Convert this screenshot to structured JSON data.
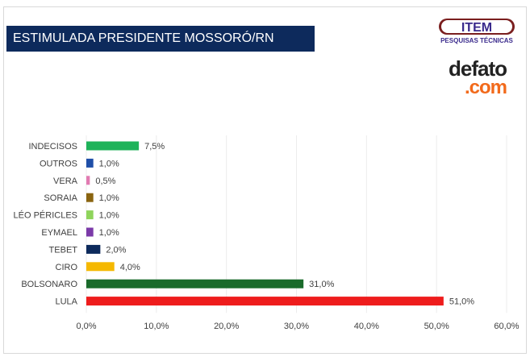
{
  "header": {
    "title": "ESTIMULADA PRESIDENTE MOSSORÓ/RN"
  },
  "logos": {
    "item": {
      "text": "ITEM",
      "subtext": "PESQUISAS TÉCNICAS"
    },
    "defato": {
      "text": "defato",
      "subtext": ".com"
    }
  },
  "chart_data": {
    "type": "bar",
    "orientation": "horizontal",
    "categories": [
      "INDECISOS",
      "OUTROS",
      "VERA",
      "SORAIA",
      "LÉO PÉRICLES",
      "EYMAEL",
      "TEBET",
      "CIRO",
      "BOLSONARO",
      "LULA"
    ],
    "values": [
      7.5,
      1.0,
      0.5,
      1.0,
      1.0,
      1.0,
      2.0,
      4.0,
      31.0,
      51.0
    ],
    "value_labels": [
      "7,5%",
      "1,0%",
      "0,5%",
      "1,0%",
      "1,0%",
      "1,0%",
      "2,0%",
      "4,0%",
      "31,0%",
      "51,0%"
    ],
    "colors": [
      "#1fb35a",
      "#1f4fa8",
      "#e27bb2",
      "#8a6410",
      "#8fd45c",
      "#7b3aa8",
      "#0d2a5c",
      "#f5b800",
      "#1a6b2b",
      "#ee1c1c"
    ],
    "xlim": [
      0,
      60
    ],
    "xticks": [
      0,
      10,
      20,
      30,
      40,
      50,
      60
    ],
    "xtick_labels": [
      "0,0%",
      "10,0%",
      "20,0%",
      "30,0%",
      "40,0%",
      "50,0%",
      "60,0%"
    ],
    "title": "",
    "xlabel": "",
    "ylabel": "",
    "grid": "vertical",
    "legend": "none"
  }
}
